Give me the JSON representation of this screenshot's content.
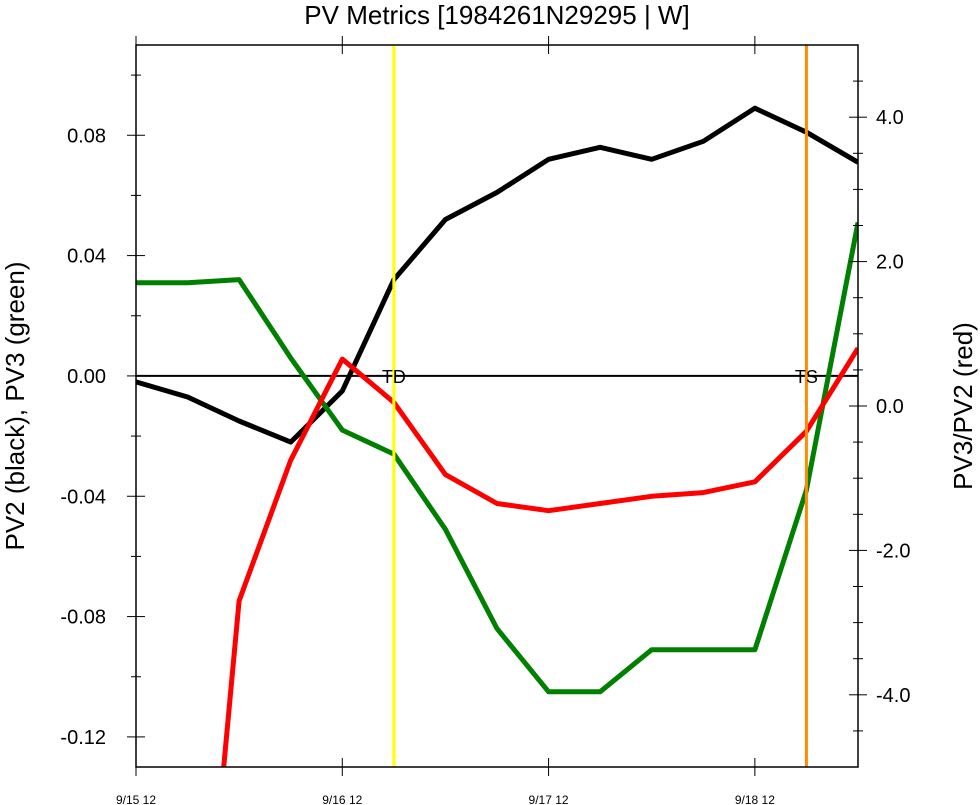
{
  "chart_data": {
    "type": "line",
    "title": "PV Metrics [1984261N29295 | W]",
    "ylabel_left": "PV2 (black), PV3 (green)",
    "ylabel_right": "PV3/PV2 (red)",
    "x_tick_labels": [
      "9/15 12",
      "9/16 12",
      "9/17 12",
      "9/18 12"
    ],
    "x_ticks": [
      0,
      4,
      8,
      12
    ],
    "x": [
      0,
      1,
      2,
      3,
      4,
      5,
      6,
      7,
      8,
      9,
      10,
      11,
      12,
      13,
      14
    ],
    "xlim": [
      0,
      14
    ],
    "ylim_left": [
      -0.13,
      0.11
    ],
    "ylim_right": [
      -5.0,
      5.0
    ],
    "y_ticks_left": [
      -0.12,
      -0.08,
      -0.04,
      0.0,
      0.04,
      0.08
    ],
    "y_tick_labels_left": [
      "-0.12",
      "-0.08",
      "-0.04",
      "0.00",
      "0.04",
      "0.08"
    ],
    "y_ticks_right": [
      -4.0,
      -2.0,
      0.0,
      2.0,
      4.0
    ],
    "y_tick_labels_right": [
      "-4.0",
      "-2.0",
      "0.0",
      "2.0",
      "4.0"
    ],
    "series": [
      {
        "axis": "left",
        "color": "#000000",
        "x": [
          0,
          1,
          2,
          3,
          4,
          5,
          6,
          7,
          8,
          9,
          10,
          11,
          12,
          13,
          14
        ],
        "values": [
          -0.002,
          -0.007,
          -0.015,
          -0.022,
          -0.005,
          0.032,
          0.052,
          0.061,
          0.072,
          0.076,
          0.072,
          0.078,
          0.089,
          0.081,
          0.071
        ]
      },
      {
        "axis": "left",
        "color": "#008000",
        "x": [
          0,
          1,
          2,
          3,
          4,
          5,
          6,
          7,
          8,
          9,
          10,
          11,
          12,
          13,
          14
        ],
        "values": [
          0.031,
          0.031,
          0.032,
          0.006,
          -0.018,
          -0.026,
          -0.051,
          -0.084,
          -0.105,
          -0.105,
          -0.091,
          -0.091,
          -0.091,
          -0.038,
          0.051
        ]
      },
      {
        "axis": "right",
        "color": "#ff0000",
        "x": [
          1.7,
          2,
          3,
          4,
          5,
          6,
          7,
          8,
          9,
          10,
          11,
          12,
          13,
          14
        ],
        "values": [
          -5.0,
          -2.7,
          -0.75,
          0.65,
          0.05,
          -0.95,
          -1.35,
          -1.45,
          -1.35,
          -1.25,
          -1.2,
          -1.05,
          -0.35,
          0.8
        ]
      }
    ],
    "zero_line": 0.0,
    "vertical_markers": [
      {
        "x": 5.0,
        "label": "TD",
        "color": "#ffff00"
      },
      {
        "x": 13.0,
        "label": "TS",
        "color": "#ff8c00"
      }
    ],
    "grid": false,
    "legend": "none"
  }
}
